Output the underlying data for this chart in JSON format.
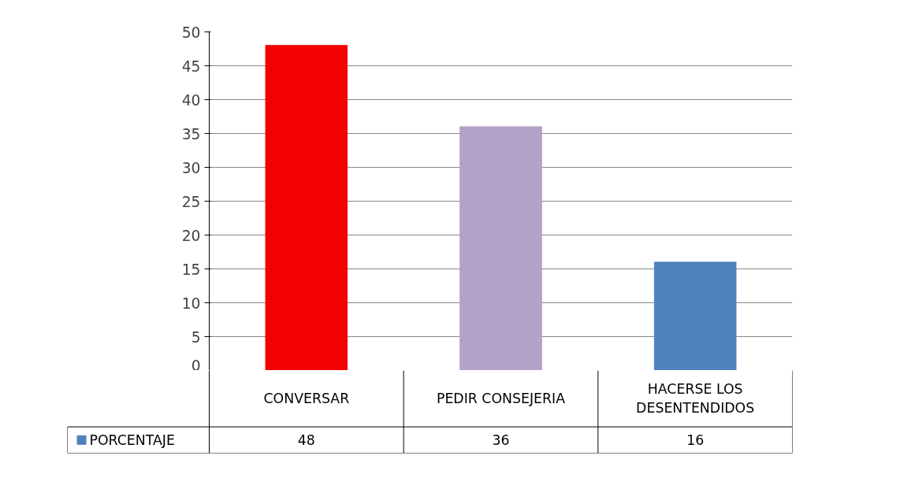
{
  "chart_data": {
    "type": "bar",
    "categories": [
      "CONVERSAR",
      "PEDIR CONSEJERIA",
      "HACERSE LOS DESENTENDIDOS"
    ],
    "series": [
      {
        "name": "PORCENTAJE",
        "color": "#4f81bd",
        "colors": [
          "#f50000",
          "#b3a2c7",
          "#4f81bd"
        ],
        "values": [
          48,
          36,
          16
        ]
      }
    ],
    "ylim": [
      0,
      50
    ],
    "yticks": [
      0,
      5,
      10,
      15,
      20,
      25,
      30,
      35,
      40,
      45,
      50
    ],
    "grid": "y",
    "legend": "bottom left",
    "data_labels": true
  }
}
